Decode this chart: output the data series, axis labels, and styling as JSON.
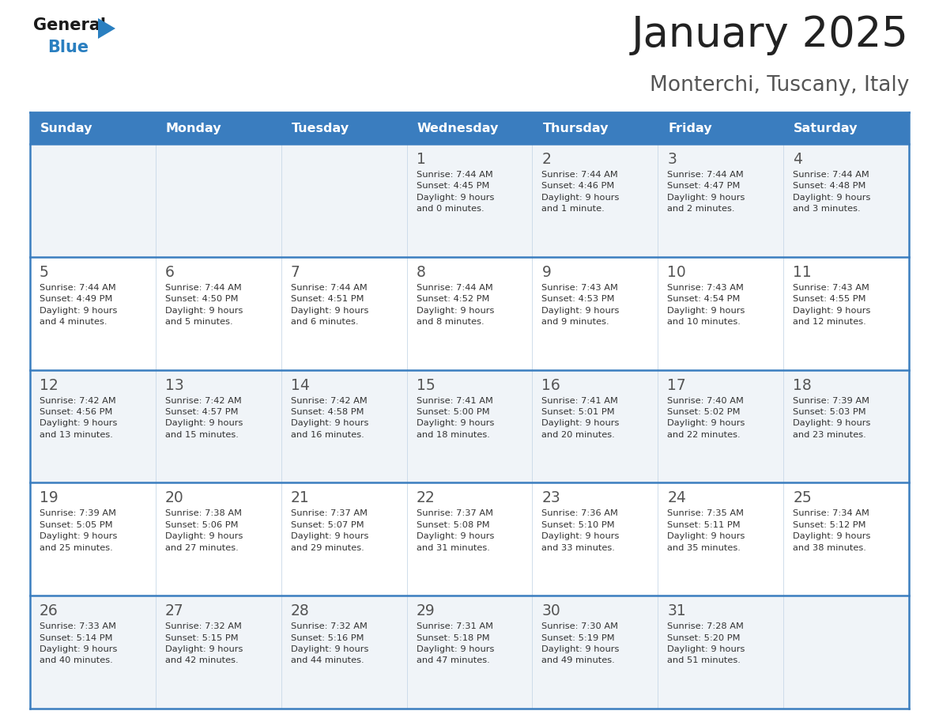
{
  "title": "January 2025",
  "subtitle": "Monterchi, Tuscany, Italy",
  "days_of_week": [
    "Sunday",
    "Monday",
    "Tuesday",
    "Wednesday",
    "Thursday",
    "Friday",
    "Saturday"
  ],
  "header_bg": "#3a7dbf",
  "header_text": "#ffffff",
  "row_bg_odd": "#f0f4f8",
  "row_bg_even": "#ffffff",
  "cell_border_color": "#3a7dbf",
  "day_number_color": "#555555",
  "text_color": "#333333",
  "title_color": "#222222",
  "subtitle_color": "#555555",
  "logo_general_color": "#1a1a1a",
  "logo_blue_color": "#2a7fc0",
  "calendar_data": [
    [
      {
        "day": null,
        "info": null
      },
      {
        "day": null,
        "info": null
      },
      {
        "day": null,
        "info": null
      },
      {
        "day": 1,
        "info": "Sunrise: 7:44 AM\nSunset: 4:45 PM\nDaylight: 9 hours\nand 0 minutes."
      },
      {
        "day": 2,
        "info": "Sunrise: 7:44 AM\nSunset: 4:46 PM\nDaylight: 9 hours\nand 1 minute."
      },
      {
        "day": 3,
        "info": "Sunrise: 7:44 AM\nSunset: 4:47 PM\nDaylight: 9 hours\nand 2 minutes."
      },
      {
        "day": 4,
        "info": "Sunrise: 7:44 AM\nSunset: 4:48 PM\nDaylight: 9 hours\nand 3 minutes."
      }
    ],
    [
      {
        "day": 5,
        "info": "Sunrise: 7:44 AM\nSunset: 4:49 PM\nDaylight: 9 hours\nand 4 minutes."
      },
      {
        "day": 6,
        "info": "Sunrise: 7:44 AM\nSunset: 4:50 PM\nDaylight: 9 hours\nand 5 minutes."
      },
      {
        "day": 7,
        "info": "Sunrise: 7:44 AM\nSunset: 4:51 PM\nDaylight: 9 hours\nand 6 minutes."
      },
      {
        "day": 8,
        "info": "Sunrise: 7:44 AM\nSunset: 4:52 PM\nDaylight: 9 hours\nand 8 minutes."
      },
      {
        "day": 9,
        "info": "Sunrise: 7:43 AM\nSunset: 4:53 PM\nDaylight: 9 hours\nand 9 minutes."
      },
      {
        "day": 10,
        "info": "Sunrise: 7:43 AM\nSunset: 4:54 PM\nDaylight: 9 hours\nand 10 minutes."
      },
      {
        "day": 11,
        "info": "Sunrise: 7:43 AM\nSunset: 4:55 PM\nDaylight: 9 hours\nand 12 minutes."
      }
    ],
    [
      {
        "day": 12,
        "info": "Sunrise: 7:42 AM\nSunset: 4:56 PM\nDaylight: 9 hours\nand 13 minutes."
      },
      {
        "day": 13,
        "info": "Sunrise: 7:42 AM\nSunset: 4:57 PM\nDaylight: 9 hours\nand 15 minutes."
      },
      {
        "day": 14,
        "info": "Sunrise: 7:42 AM\nSunset: 4:58 PM\nDaylight: 9 hours\nand 16 minutes."
      },
      {
        "day": 15,
        "info": "Sunrise: 7:41 AM\nSunset: 5:00 PM\nDaylight: 9 hours\nand 18 minutes."
      },
      {
        "day": 16,
        "info": "Sunrise: 7:41 AM\nSunset: 5:01 PM\nDaylight: 9 hours\nand 20 minutes."
      },
      {
        "day": 17,
        "info": "Sunrise: 7:40 AM\nSunset: 5:02 PM\nDaylight: 9 hours\nand 22 minutes."
      },
      {
        "day": 18,
        "info": "Sunrise: 7:39 AM\nSunset: 5:03 PM\nDaylight: 9 hours\nand 23 minutes."
      }
    ],
    [
      {
        "day": 19,
        "info": "Sunrise: 7:39 AM\nSunset: 5:05 PM\nDaylight: 9 hours\nand 25 minutes."
      },
      {
        "day": 20,
        "info": "Sunrise: 7:38 AM\nSunset: 5:06 PM\nDaylight: 9 hours\nand 27 minutes."
      },
      {
        "day": 21,
        "info": "Sunrise: 7:37 AM\nSunset: 5:07 PM\nDaylight: 9 hours\nand 29 minutes."
      },
      {
        "day": 22,
        "info": "Sunrise: 7:37 AM\nSunset: 5:08 PM\nDaylight: 9 hours\nand 31 minutes."
      },
      {
        "day": 23,
        "info": "Sunrise: 7:36 AM\nSunset: 5:10 PM\nDaylight: 9 hours\nand 33 minutes."
      },
      {
        "day": 24,
        "info": "Sunrise: 7:35 AM\nSunset: 5:11 PM\nDaylight: 9 hours\nand 35 minutes."
      },
      {
        "day": 25,
        "info": "Sunrise: 7:34 AM\nSunset: 5:12 PM\nDaylight: 9 hours\nand 38 minutes."
      }
    ],
    [
      {
        "day": 26,
        "info": "Sunrise: 7:33 AM\nSunset: 5:14 PM\nDaylight: 9 hours\nand 40 minutes."
      },
      {
        "day": 27,
        "info": "Sunrise: 7:32 AM\nSunset: 5:15 PM\nDaylight: 9 hours\nand 42 minutes."
      },
      {
        "day": 28,
        "info": "Sunrise: 7:32 AM\nSunset: 5:16 PM\nDaylight: 9 hours\nand 44 minutes."
      },
      {
        "day": 29,
        "info": "Sunrise: 7:31 AM\nSunset: 5:18 PM\nDaylight: 9 hours\nand 47 minutes."
      },
      {
        "day": 30,
        "info": "Sunrise: 7:30 AM\nSunset: 5:19 PM\nDaylight: 9 hours\nand 49 minutes."
      },
      {
        "day": 31,
        "info": "Sunrise: 7:28 AM\nSunset: 5:20 PM\nDaylight: 9 hours\nand 51 minutes."
      },
      {
        "day": null,
        "info": null
      }
    ]
  ]
}
